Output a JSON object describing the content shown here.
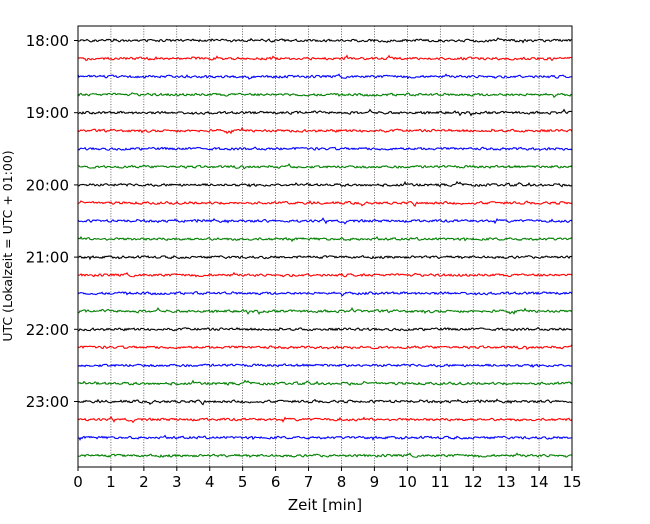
{
  "chart_data": {
    "type": "line",
    "title": "",
    "xlabel": "Zeit  [min]",
    "ylabel": "UTC (Lokalzeit = UTC + 01:00)",
    "xlim": [
      0,
      15
    ],
    "x_ticks": [
      0,
      1,
      2,
      3,
      4,
      5,
      6,
      7,
      8,
      9,
      10,
      11,
      12,
      13,
      14,
      15
    ],
    "grid": "vertical dotted at each minute",
    "legend": "none",
    "trace_interval_minutes": 15,
    "trace_colors": [
      "#000000",
      "#ff0000",
      "#0000ff",
      "#008000"
    ],
    "traces": [
      {
        "start": "18:00",
        "color": "#000000"
      },
      {
        "start": "18:15",
        "color": "#ff0000"
      },
      {
        "start": "18:30",
        "color": "#0000ff"
      },
      {
        "start": "18:45",
        "color": "#008000"
      },
      {
        "start": "19:00",
        "color": "#000000"
      },
      {
        "start": "19:15",
        "color": "#ff0000"
      },
      {
        "start": "19:30",
        "color": "#0000ff"
      },
      {
        "start": "19:45",
        "color": "#008000"
      },
      {
        "start": "20:00",
        "color": "#000000"
      },
      {
        "start": "20:15",
        "color": "#ff0000"
      },
      {
        "start": "20:30",
        "color": "#0000ff"
      },
      {
        "start": "20:45",
        "color": "#008000"
      },
      {
        "start": "21:00",
        "color": "#000000"
      },
      {
        "start": "21:15",
        "color": "#ff0000"
      },
      {
        "start": "21:30",
        "color": "#0000ff"
      },
      {
        "start": "21:45",
        "color": "#008000"
      },
      {
        "start": "22:00",
        "color": "#000000"
      },
      {
        "start": "22:15",
        "color": "#ff0000"
      },
      {
        "start": "22:30",
        "color": "#0000ff"
      },
      {
        "start": "22:45",
        "color": "#008000"
      },
      {
        "start": "23:00",
        "color": "#000000"
      },
      {
        "start": "23:15",
        "color": "#ff0000"
      },
      {
        "start": "23:30",
        "color": "#0000ff"
      },
      {
        "start": "23:45",
        "color": "#008000"
      }
    ],
    "y_tick_labels": [
      "18:00",
      "19:00",
      "20:00",
      "21:00",
      "22:00",
      "23:00"
    ]
  }
}
